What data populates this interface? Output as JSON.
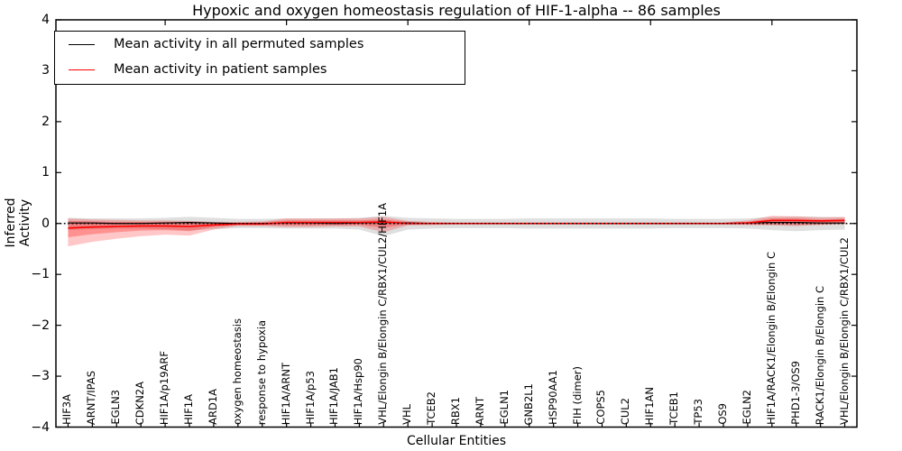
{
  "title": "Hypoxic and oxygen homeostasis regulation of HIF-1-alpha -- 86 samples",
  "legend": {
    "position": "upper left",
    "items": [
      {
        "label": "Mean activity in all permuted samples",
        "color": "#000000"
      },
      {
        "label": "Mean activity in patient samples",
        "color": "#ff0000"
      }
    ]
  },
  "axes": {
    "xlabel": "Cellular Entities",
    "ylabel": "Inferred Activity",
    "ytick_labels": [
      "4",
      "3",
      "2",
      "1",
      "0",
      "−1",
      "−2",
      "−3",
      "−4"
    ],
    "ytick_values": [
      4,
      3,
      2,
      1,
      0,
      -1,
      -2,
      -3,
      -4
    ]
  },
  "chart_data": {
    "type": "line",
    "title": "Hypoxic and oxygen homeostasis regulation of HIF-1-alpha -- 86 samples",
    "xlabel": "Cellular Entities",
    "ylabel": "Inferred Activity",
    "ylim": [
      -4,
      4
    ],
    "grid": false,
    "legend_position": "upper left",
    "x_major_tick_values": [
      5,
      10,
      15,
      20,
      25,
      30
    ],
    "zero_line": {
      "y": 0,
      "style": "dotted",
      "color": "#000000"
    },
    "categories": [
      "HIF3A",
      "ARNT/IPAS",
      "EGLN3",
      "CDKN2A",
      "HIF1A/p19ARF",
      "HIF1A",
      "ARD1A",
      "oxygen homeostasis",
      "response to hypoxia",
      "HIF1A/ARNT",
      "HIF1A/p53",
      "HIF1A/JAB1",
      "HIF1A/Hsp90",
      "VHL/Elongin B/Elongin C/RBX1/CUL2/HIF1A",
      "VHL",
      "TCEB2",
      "RBX1",
      "ARNT",
      "EGLN1",
      "GNB2L1",
      "HSP90AA1",
      "FIH (dimer)",
      "COPS5",
      "CUL2",
      "HIF1AN",
      "TCEB1",
      "TP53",
      "OS9",
      "EGLN2",
      "HIF1A/RACK1/Elongin B/Elongin C",
      "PHD1-3/OS9",
      "RACK1/Elongin B/Elongin C",
      "VHL/Elongin B/Elongin C/RBX1/CUL2"
    ],
    "series": [
      {
        "name": "Mean activity in all permuted samples",
        "color": "#000000",
        "values": [
          0.01,
          0.01,
          0.0,
          0.0,
          0.01,
          0.02,
          0.01,
          0.0,
          0.0,
          0.01,
          0.01,
          0.0,
          0.01,
          0.02,
          0.01,
          0.0,
          0.0,
          0.0,
          0.0,
          0.0,
          0.0,
          0.0,
          0.0,
          0.0,
          0.0,
          0.0,
          0.0,
          0.0,
          0.01,
          0.02,
          0.02,
          0.01,
          0.01
        ]
      },
      {
        "name": "Mean activity in patient samples",
        "color": "#ff0000",
        "values": [
          -0.09,
          -0.07,
          -0.06,
          -0.05,
          -0.05,
          -0.06,
          -0.03,
          -0.01,
          -0.01,
          0.02,
          0.02,
          0.02,
          0.02,
          0.03,
          0.0,
          0.0,
          0.0,
          0.0,
          0.0,
          0.0,
          0.0,
          0.0,
          0.0,
          0.0,
          0.0,
          0.0,
          0.0,
          0.0,
          0.01,
          0.06,
          0.06,
          0.05,
          0.06
        ]
      }
    ],
    "bands": [
      {
        "name": "permuted-samples-std",
        "color": "#808080",
        "opacity": 0.25,
        "upper": [
          0.11,
          0.1,
          0.1,
          0.1,
          0.11,
          0.13,
          0.11,
          0.09,
          0.09,
          0.1,
          0.1,
          0.1,
          0.11,
          0.15,
          0.11,
          0.1,
          0.09,
          0.09,
          0.09,
          0.1,
          0.1,
          0.1,
          0.1,
          0.1,
          0.1,
          0.09,
          0.09,
          0.09,
          0.1,
          0.13,
          0.14,
          0.13,
          0.12
        ],
        "lower": [
          -0.13,
          -0.11,
          -0.1,
          -0.1,
          -0.11,
          -0.14,
          -0.11,
          -0.09,
          -0.09,
          -0.1,
          -0.1,
          -0.1,
          -0.12,
          -0.25,
          -0.12,
          -0.1,
          -0.09,
          -0.09,
          -0.09,
          -0.1,
          -0.1,
          -0.1,
          -0.1,
          -0.1,
          -0.1,
          -0.09,
          -0.09,
          -0.09,
          -0.1,
          -0.13,
          -0.15,
          -0.13,
          -0.12
        ]
      },
      {
        "name": "patient-samples-std-outer",
        "color": "#ff0000",
        "opacity": 0.22,
        "upper": [
          0.1,
          0.08,
          0.07,
          0.06,
          0.06,
          0.05,
          0.03,
          0.03,
          0.04,
          0.1,
          0.1,
          0.1,
          0.1,
          0.13,
          0.05,
          0.03,
          0.02,
          0.02,
          0.02,
          0.02,
          0.02,
          0.02,
          0.02,
          0.02,
          0.02,
          0.02,
          0.02,
          0.02,
          0.06,
          0.15,
          0.14,
          0.12,
          0.13
        ],
        "lower": [
          -0.45,
          -0.36,
          -0.3,
          -0.25,
          -0.22,
          -0.24,
          -0.12,
          -0.05,
          -0.05,
          -0.07,
          -0.07,
          -0.06,
          -0.06,
          -0.17,
          -0.04,
          -0.03,
          -0.02,
          -0.02,
          -0.02,
          -0.02,
          -0.02,
          -0.02,
          -0.02,
          -0.02,
          -0.02,
          -0.02,
          -0.02,
          -0.02,
          -0.03,
          -0.04,
          -0.05,
          -0.03,
          -0.01
        ]
      },
      {
        "name": "patient-samples-std-inner",
        "color": "#ff0000",
        "opacity": 0.27,
        "upper": [
          0.05,
          0.04,
          0.03,
          0.03,
          0.03,
          0.02,
          0.01,
          0.01,
          0.02,
          0.06,
          0.06,
          0.06,
          0.06,
          0.08,
          0.03,
          0.01,
          0.01,
          0.01,
          0.01,
          0.01,
          0.01,
          0.01,
          0.01,
          0.01,
          0.01,
          0.01,
          0.01,
          0.01,
          0.03,
          0.1,
          0.1,
          0.08,
          0.09
        ],
        "lower": [
          -0.27,
          -0.21,
          -0.17,
          -0.14,
          -0.13,
          -0.15,
          -0.07,
          -0.03,
          -0.03,
          -0.04,
          -0.04,
          -0.03,
          -0.03,
          -0.08,
          -0.02,
          -0.01,
          -0.01,
          -0.01,
          -0.01,
          -0.01,
          -0.01,
          -0.01,
          -0.01,
          -0.01,
          -0.01,
          -0.01,
          -0.01,
          -0.01,
          -0.02,
          -0.02,
          -0.03,
          -0.02,
          -0.01
        ]
      }
    ]
  }
}
